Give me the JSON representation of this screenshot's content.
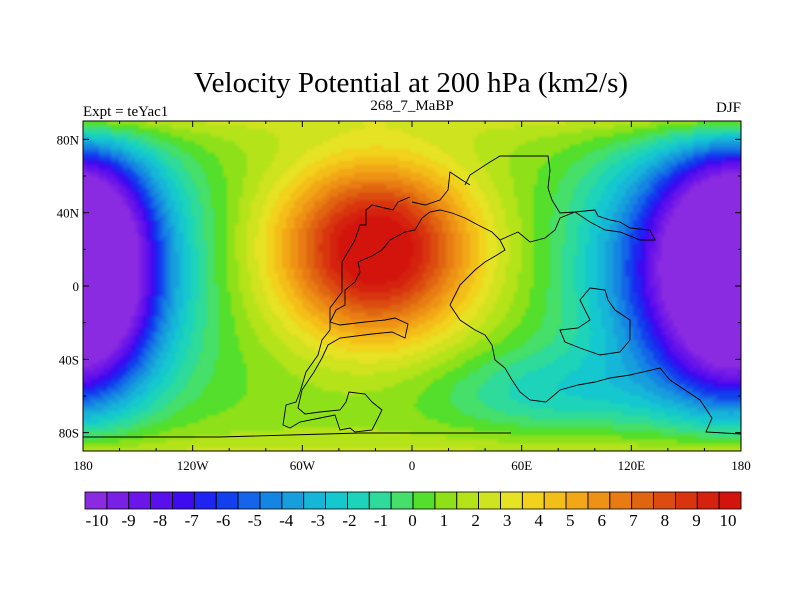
{
  "chart_data": {
    "type": "heatmap",
    "title": "Velocity Potential at 200 hPa (km2/s)",
    "subtitle_left": "Expt = teYac1",
    "subtitle_center": "268_7_MaBP",
    "subtitle_right": "DJF",
    "x_ticks": [
      "180",
      "120W",
      "60W",
      "0",
      "60E",
      "120E",
      "180"
    ],
    "x_tick_values": [
      -180,
      -120,
      -60,
      0,
      60,
      120,
      180
    ],
    "y_ticks": [
      "80N",
      "40N",
      "0",
      "40S",
      "80S"
    ],
    "y_tick_values": [
      80,
      40,
      0,
      -40,
      -80
    ],
    "xlim": [
      -180,
      180
    ],
    "ylim": [
      -90,
      90
    ],
    "colorbar_labels": [
      "-10",
      "-9",
      "-8",
      "-7",
      "-6",
      "-5",
      "-4",
      "-3",
      "-2",
      "-1",
      "0",
      "1",
      "2",
      "3",
      "4",
      "5",
      "6",
      "7",
      "8",
      "9",
      "10"
    ],
    "colorbar_colors": [
      "#8a2be2",
      "#7a1fe6",
      "#6a16ea",
      "#5a0fee",
      "#3e0af0",
      "#1f24f2",
      "#1240ee",
      "#1465e9",
      "#1585e3",
      "#169fdc",
      "#16b6d8",
      "#15c8cf",
      "#1dd4ba",
      "#2fdb9a",
      "#45df6a",
      "#53df2b",
      "#8ee119",
      "#b5e31a",
      "#cfe31f",
      "#e6e224",
      "#f2d21c",
      "#f4be19",
      "#f2a816",
      "#ee9215",
      "#e87c13",
      "#e06511",
      "#dc4c10",
      "#d8350f",
      "#d4220e",
      "#d3140d"
    ],
    "field_centers": [
      {
        "lon": -20,
        "lat": 20,
        "value": 10.6,
        "spread_lon": 55,
        "spread_lat": 50
      },
      {
        "lon": 165,
        "lat": 10,
        "value": -10.8,
        "spread_lon": 60,
        "spread_lat": 70
      },
      {
        "lon": -180,
        "lat": 10,
        "value": -10.2,
        "spread_lon": 35,
        "spread_lat": 65
      },
      {
        "lon": 70,
        "lat": -60,
        "value": -2.5,
        "spread_lon": 60,
        "spread_lat": 25
      }
    ]
  }
}
